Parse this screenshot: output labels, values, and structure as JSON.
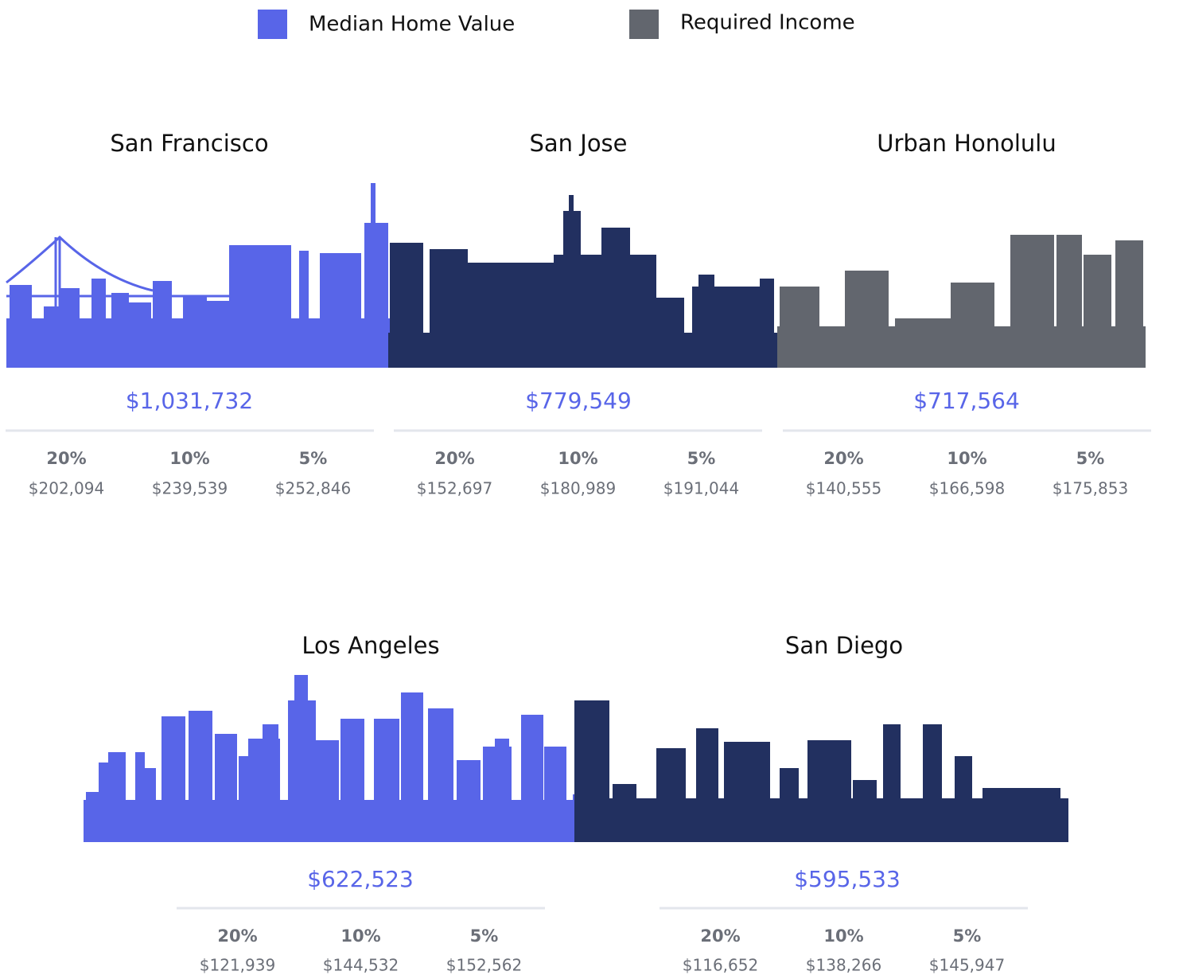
{
  "legend": [
    {
      "label": "Median Home Value"
    },
    {
      "label": "Required Income"
    }
  ],
  "cities": [
    {
      "name": "San Francisco",
      "median_home_value": "$1,031,732",
      "tiers": [
        {
          "down_payment": "20%",
          "income": "$202,094"
        },
        {
          "down_payment": "10%",
          "income": "$239,539"
        },
        {
          "down_payment": "5%",
          "income": "$252,846"
        }
      ]
    },
    {
      "name": "San Jose",
      "median_home_value": "$779,549",
      "tiers": [
        {
          "down_payment": "20%",
          "income": "$152,697"
        },
        {
          "down_payment": "10%",
          "income": "$180,989"
        },
        {
          "down_payment": "5%",
          "income": "$191,044"
        }
      ]
    },
    {
      "name": "Urban Honolulu",
      "median_home_value": "$717,564",
      "tiers": [
        {
          "down_payment": "20%",
          "income": "$140,555"
        },
        {
          "down_payment": "10%",
          "income": "$166,598"
        },
        {
          "down_payment": "5%",
          "income": "$175,853"
        }
      ]
    },
    {
      "name": "Los Angeles",
      "median_home_value": "$622,523",
      "tiers": [
        {
          "down_payment": "20%",
          "income": "$121,939"
        },
        {
          "down_payment": "10%",
          "income": "$144,532"
        },
        {
          "down_payment": "5%",
          "income": "$152,562"
        }
      ]
    },
    {
      "name": "San Diego",
      "median_home_value": "$595,533",
      "tiers": [
        {
          "down_payment": "20%",
          "income": "$116,652"
        },
        {
          "down_payment": "10%",
          "income": "$138,266"
        },
        {
          "down_payment": "5%",
          "income": "$145,947"
        }
      ]
    }
  ]
}
